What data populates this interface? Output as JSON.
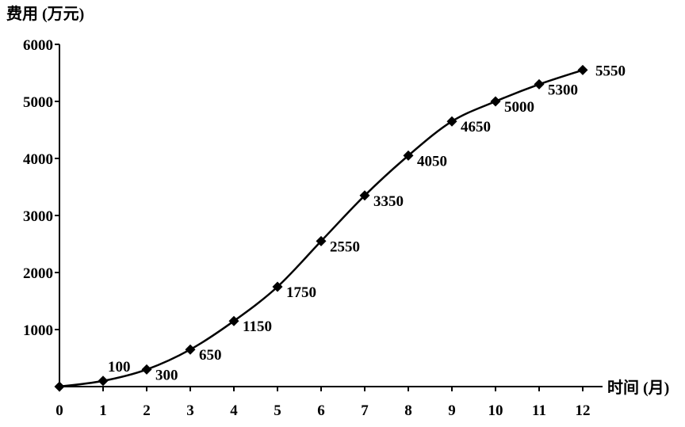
{
  "chart_data": {
    "type": "line",
    "ylabel": "费用 (万元)",
    "xlabel": "时间 (月)",
    "x": [
      0,
      1,
      2,
      3,
      4,
      5,
      6,
      7,
      8,
      9,
      10,
      11,
      12
    ],
    "series": [
      {
        "values": [
          0,
          100,
          300,
          650,
          1150,
          1750,
          2550,
          3350,
          4050,
          4650,
          5000,
          5300,
          5550
        ]
      }
    ],
    "data_labels": [
      "",
      "100",
      "300",
      "650",
      "1150",
      "1750",
      "2550",
      "3350",
      "4050",
      "4650",
      "5000",
      "5300",
      "5550"
    ],
    "x_ticks": [
      "0",
      "1",
      "2",
      "3",
      "4",
      "5",
      "6",
      "7",
      "8",
      "9",
      "10",
      "11",
      "12"
    ],
    "y_ticks": [
      "1000",
      "2000",
      "3000",
      "4000",
      "5000",
      "6000"
    ],
    "xlim": [
      0,
      12
    ],
    "ylim": [
      0,
      6000
    ],
    "marker": "diamond",
    "grid": false,
    "line_color": "#000000"
  }
}
